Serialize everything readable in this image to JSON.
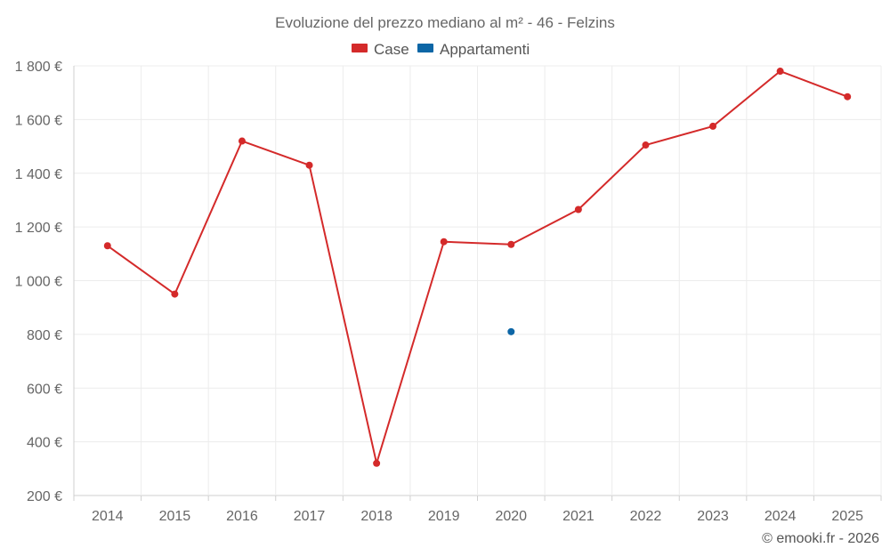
{
  "chart_data": {
    "type": "line",
    "title": "Evoluzione del prezzo mediano al m² - 46 - Felzins",
    "categories": [
      "2014",
      "2015",
      "2016",
      "2017",
      "2018",
      "2019",
      "2020",
      "2021",
      "2022",
      "2023",
      "2024",
      "2025"
    ],
    "series": [
      {
        "name": "Case",
        "color": "#d42a2a",
        "values": [
          1130,
          950,
          1520,
          1430,
          320,
          1145,
          1135,
          1265,
          1505,
          1575,
          1780,
          1685
        ]
      },
      {
        "name": "Appartamenti",
        "color": "#0d66a6",
        "values": [
          null,
          null,
          null,
          null,
          null,
          null,
          810,
          null,
          null,
          null,
          null,
          null
        ]
      }
    ],
    "y_ticks": [
      200,
      400,
      600,
      800,
      1000,
      1200,
      1400,
      1600,
      1800
    ],
    "y_tick_labels": [
      "200 €",
      "400 €",
      "600 €",
      "800 €",
      "1 000 €",
      "1 200 €",
      "1 400 €",
      "1 600 €",
      "1 800 €"
    ],
    "ylim": [
      200,
      1800
    ],
    "xlabel": "",
    "ylabel": "",
    "grid": true,
    "legend_position": "top-center"
  },
  "credit": "© emooki.fr - 2026"
}
